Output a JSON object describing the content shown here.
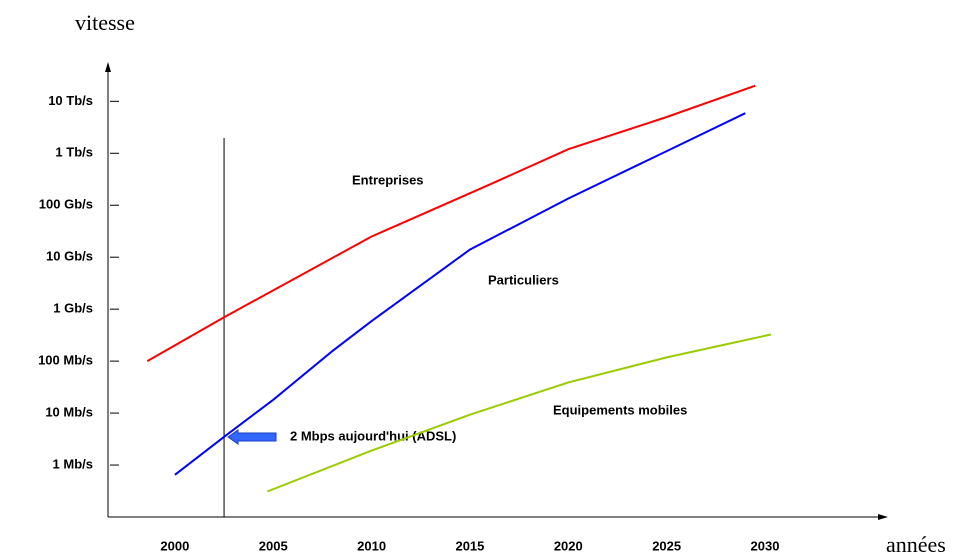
{
  "chart_data": {
    "type": "line",
    "log_y": true,
    "y_label": "vitesse",
    "x_label": "années",
    "annotation": "2 Mbps aujourd'hui (ADSL)",
    "vline": 2002.5,
    "xlim": [
      1996.6,
      2036.1
    ],
    "xticks": [
      2000,
      2005,
      2010,
      2015,
      2020,
      2025,
      2030
    ],
    "ylim": [
      0.1,
      50000000
    ],
    "yticks": [
      {
        "value": 1,
        "label": "1 Mb/s"
      },
      {
        "value": 10,
        "label": "10 Mb/s"
      },
      {
        "value": 100,
        "label": "100 Mb/s"
      },
      {
        "value": 1000,
        "label": "1 Gb/s"
      },
      {
        "value": 10000,
        "label": "10 Gb/s"
      },
      {
        "value": 100000,
        "label": "100 Gb/s"
      },
      {
        "value": 1000000,
        "label": "1 Tb/s"
      },
      {
        "value": 10000000,
        "label": "10 Tb/s"
      }
    ],
    "series": [
      {
        "name": "Entreprises",
        "color": "#ff0000",
        "x": [
          1998.6,
          2002.5,
          2010,
          2016,
          2020,
          2025,
          2029.5
        ],
        "values": [
          100,
          700,
          25000,
          250000,
          1200000,
          5000000,
          20000000
        ]
      },
      {
        "name": "Particuliers",
        "color": "#0000ff",
        "x": [
          2000,
          2002.5,
          2005,
          2008,
          2010,
          2015,
          2020,
          2025,
          2029
        ],
        "values": [
          0.65,
          3.5,
          18,
          155,
          590,
          14000,
          135000,
          1100000,
          5900000
        ]
      },
      {
        "name": "Equipements mobiles",
        "color": "#99cc00",
        "x": [
          2004.7,
          2010,
          2015,
          2020,
          2025,
          2030.3
        ],
        "values": [
          0.31,
          1.9,
          9.3,
          39,
          118,
          325
        ]
      }
    ]
  }
}
